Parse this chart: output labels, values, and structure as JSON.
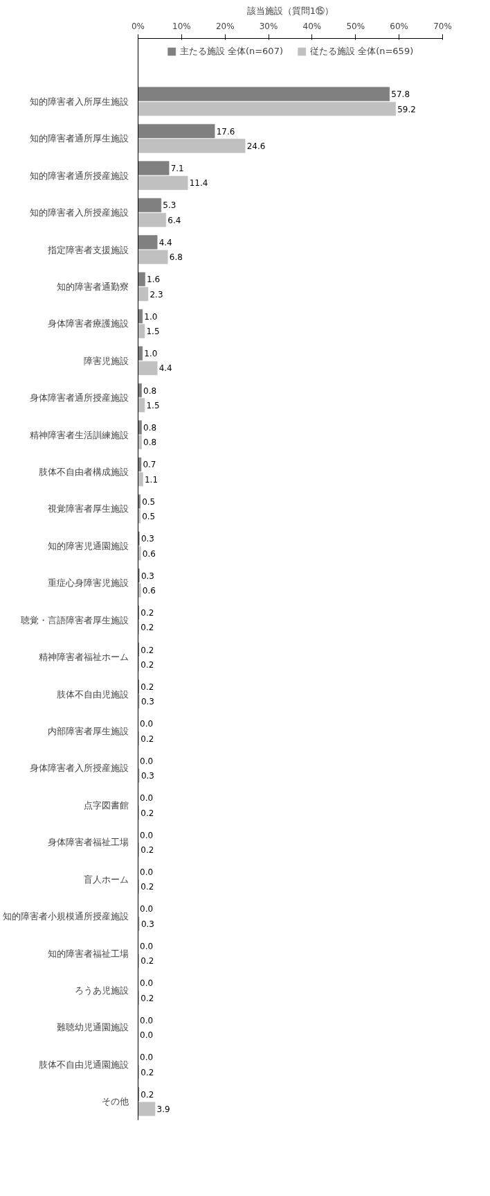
{
  "chart_data": {
    "type": "bar",
    "orientation": "horizontal",
    "title": "該当施設（質問1⑮）",
    "categories": [
      "知的障害者入所厚生施設",
      "知的障害者通所厚生施設",
      "知的障害者通所授産施設",
      "知的障害者入所授産施設",
      "指定障害者支援施設",
      "知的障害者通勤寮",
      "身体障害者療護施設",
      "障害児施設",
      "身体障害者通所授産施設",
      "精神障害者生活訓練施設",
      "肢体不自由者構成施設",
      "視覚障害者厚生施設",
      "知的障害児通園施設",
      "重症心身障害児施設",
      "聴覚・言語障害者厚生施設",
      "精神障害者福祉ホーム",
      "肢体不自由児施設",
      "内部障害者厚生施設",
      "身体障害者入所授産施設",
      "点字図書館",
      "身体障害者福祉工場",
      "盲人ホーム",
      "知的障害者小規模通所授産施設",
      "知的障害者福祉工場",
      "ろうあ児施設",
      "難聴幼児通園施設",
      "肢体不自由児通園施設",
      "その他"
    ],
    "series": [
      {
        "name": "主たる施設 全体(n=607)",
        "color": "#808080",
        "values": [
          57.8,
          17.6,
          7.1,
          5.3,
          4.4,
          1.6,
          1.0,
          1.0,
          0.8,
          0.8,
          0.7,
          0.5,
          0.3,
          0.3,
          0.2,
          0.2,
          0.2,
          0.0,
          0.0,
          0.0,
          0.0,
          0.0,
          0.0,
          0.0,
          0.0,
          0.0,
          0.0,
          0.2
        ],
        "value_labels": [
          "57.8",
          "17.6",
          "7.1",
          "5.3",
          "4.4",
          "1.6",
          "1.0",
          "1.0",
          "0.8",
          "0.8",
          "0.7",
          "0.5",
          "0.3",
          "0.3",
          "0.2",
          "0.2",
          "0.2",
          "0.0",
          "0.0",
          "0.0",
          "0.0",
          "0.0",
          "0.0",
          "0.0",
          "0.0",
          "0.0",
          "0.0",
          "0.2"
        ]
      },
      {
        "name": "従たる施設 全体(n=659)",
        "color": "#c0c0c0",
        "values": [
          59.2,
          24.6,
          11.4,
          6.4,
          6.8,
          2.3,
          1.5,
          4.4,
          1.5,
          0.8,
          1.1,
          0.5,
          0.6,
          0.6,
          0.2,
          0.2,
          0.3,
          0.2,
          0.3,
          0.2,
          0.2,
          0.2,
          0.3,
          0.2,
          0.2,
          0.0,
          0.2,
          3.9
        ],
        "value_labels": [
          "59.2",
          "24.6",
          "11.4",
          "6.4",
          "6.8",
          "2.3",
          "1.5",
          "4.4",
          "1.5",
          "0.8",
          "1.1",
          "0.5",
          "0.6",
          "0.6",
          "0.2",
          "0.2",
          "0.3",
          "0.2",
          "0.3",
          "0.2",
          "0.2",
          "0.2",
          "0.3",
          "0.2",
          "0.2",
          "0.0",
          "0.2",
          "3.9"
        ]
      }
    ],
    "xlim": [
      0,
      70
    ],
    "xticks": [
      {
        "value": 0,
        "label": "0%"
      },
      {
        "value": 10,
        "label": "10%"
      },
      {
        "value": 20,
        "label": "20%"
      },
      {
        "value": 30,
        "label": "30%"
      },
      {
        "value": 40,
        "label": "40%"
      },
      {
        "value": 50,
        "label": "50%"
      },
      {
        "value": 60,
        "label": "60%"
      },
      {
        "value": 70,
        "label": "70%"
      }
    ],
    "legend": "top",
    "grid": false
  }
}
